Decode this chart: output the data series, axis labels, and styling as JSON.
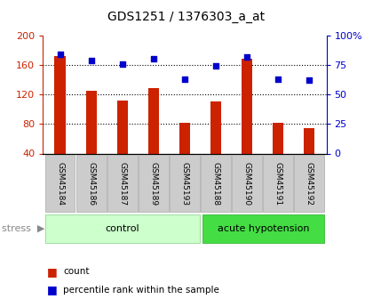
{
  "title": "GDS1251 / 1376303_a_at",
  "samples": [
    "GSM45184",
    "GSM45186",
    "GSM45187",
    "GSM45189",
    "GSM45193",
    "GSM45188",
    "GSM45190",
    "GSM45191",
    "GSM45192"
  ],
  "counts": [
    172,
    125,
    112,
    128,
    82,
    111,
    168,
    82,
    74
  ],
  "percentiles": [
    84,
    79,
    76,
    80,
    63,
    74,
    82,
    63,
    62
  ],
  "n_control": 5,
  "n_hyp": 4,
  "bar_color": "#cc2200",
  "dot_color": "#0000cc",
  "ylim_left": [
    40,
    200
  ],
  "ylim_right": [
    0,
    100
  ],
  "yticks_left": [
    40,
    80,
    120,
    160,
    200
  ],
  "yticks_right": [
    0,
    25,
    50,
    75,
    100
  ],
  "ytick_labels_right": [
    "0",
    "25",
    "50",
    "75",
    "100%"
  ],
  "title_fontsize": 10,
  "axis_label_color_left": "#cc2200",
  "axis_label_color_right": "#0000cc",
  "control_label": "control",
  "hypotension_label": "acute hypotension",
  "legend_count": "count",
  "legend_pct": "percentile rank within the sample",
  "tick_area_bg": "#bbbbbb",
  "control_bg": "#ccffcc",
  "hypotension_bg": "#44dd44",
  "bar_width": 0.35
}
